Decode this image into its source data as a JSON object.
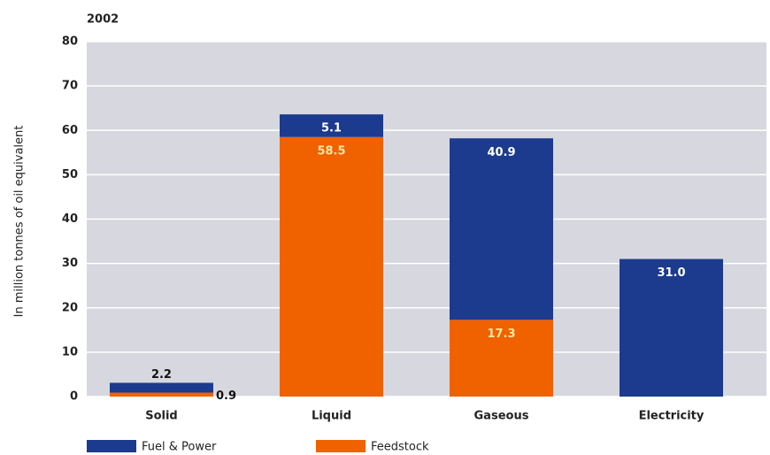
{
  "chart_data": {
    "type": "stacked_bar",
    "title": "2002",
    "y_label": "In million tonnes of oil equivalent",
    "categories": [
      "Solid",
      "Liquid",
      "Gaseous",
      "Electricity"
    ],
    "series": [
      {
        "name": "Fuel & Power",
        "color": "#1c3a8e",
        "values": [
          2.2,
          5.1,
          40.9,
          31.0
        ],
        "value_labels": [
          "2.2",
          "5.1",
          "40.9",
          "31.0"
        ]
      },
      {
        "name": "Feedstock",
        "color": "#f06100",
        "values": [
          0.9,
          58.5,
          17.3,
          null
        ]
      }
    ],
    "ylim": [
      0,
      80
    ],
    "yticks": [
      0,
      10,
      20,
      30,
      40,
      50,
      60,
      70,
      80
    ],
    "grid": true
  }
}
